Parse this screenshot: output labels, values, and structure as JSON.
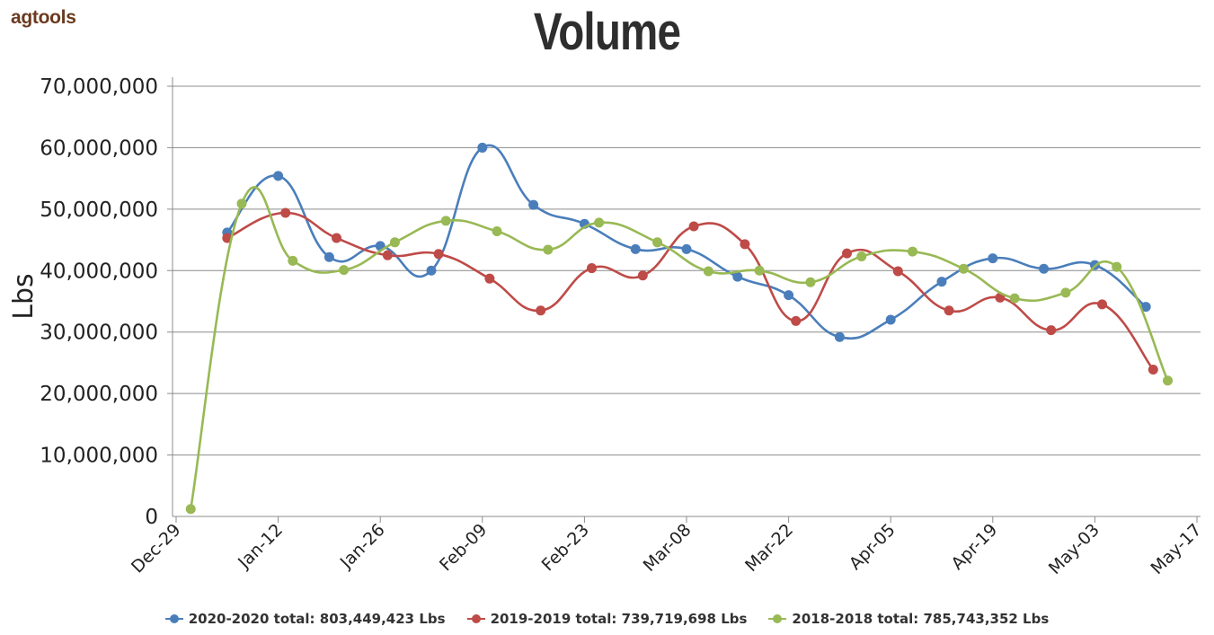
{
  "logo": {
    "text": "agtools"
  },
  "chart_data": {
    "type": "line",
    "title": "Volume",
    "xlabel": "",
    "ylabel": "Lbs",
    "ylim": [
      0,
      70000000
    ],
    "yticks": [
      "0",
      "10,000,000",
      "20,000,000",
      "30,000,000",
      "40,000,000",
      "50,000,000",
      "60,000,000",
      "70,000,000"
    ],
    "xlim": [
      "2019-12-29",
      "2020-05-17"
    ],
    "xticks": [
      "Dec-29",
      "Jan-12",
      "Jan-26",
      "Feb-09",
      "Feb-23",
      "Mar-08",
      "Mar-22",
      "Apr-05",
      "Apr-19",
      "May-03",
      "May-17"
    ],
    "grid": true,
    "legend_position": "bottom",
    "series": [
      {
        "name": "2020-2020 total: 803,449,423 Lbs",
        "color": "#4a7ebb",
        "points": [
          [
            "2020-01-05",
            46200000
          ],
          [
            "2020-01-12",
            55400000
          ],
          [
            "2020-01-19",
            42200000
          ],
          [
            "2020-01-26",
            44000000
          ],
          [
            "2020-02-02",
            40000000
          ],
          [
            "2020-02-09",
            60000000
          ],
          [
            "2020-02-16",
            50700000
          ],
          [
            "2020-02-23",
            47600000
          ],
          [
            "2020-03-01",
            43500000
          ],
          [
            "2020-03-08",
            43500000
          ],
          [
            "2020-03-15",
            39000000
          ],
          [
            "2020-03-22",
            36000000
          ],
          [
            "2020-03-29",
            29200000
          ],
          [
            "2020-04-05",
            32000000
          ],
          [
            "2020-04-12",
            38200000
          ],
          [
            "2020-04-19",
            42000000
          ],
          [
            "2020-04-26",
            40300000
          ],
          [
            "2020-05-03",
            40900000
          ],
          [
            "2020-05-10",
            34100000
          ]
        ]
      },
      {
        "name": "2019-2019 total: 739,719,698 Lbs",
        "color": "#be4b48",
        "points": [
          [
            "2020-01-05",
            45300000
          ],
          [
            "2020-01-13",
            49400000
          ],
          [
            "2020-01-20",
            45300000
          ],
          [
            "2020-01-27",
            42500000
          ],
          [
            "2020-02-03",
            42700000
          ],
          [
            "2020-02-10",
            38700000
          ],
          [
            "2020-02-17",
            33500000
          ],
          [
            "2020-02-24",
            40400000
          ],
          [
            "2020-03-02",
            39200000
          ],
          [
            "2020-03-09",
            47200000
          ],
          [
            "2020-03-16",
            44300000
          ],
          [
            "2020-03-23",
            31800000
          ],
          [
            "2020-03-30",
            42800000
          ],
          [
            "2020-04-06",
            39900000
          ],
          [
            "2020-04-13",
            33500000
          ],
          [
            "2020-04-20",
            35600000
          ],
          [
            "2020-04-27",
            30300000
          ],
          [
            "2020-05-04",
            34500000
          ],
          [
            "2020-05-11",
            23900000
          ]
        ]
      },
      {
        "name": "2018-2018 total: 785,743,352 Lbs",
        "color": "#98b954",
        "points": [
          [
            "2019-12-31",
            1200000
          ],
          [
            "2020-01-07",
            50900000
          ],
          [
            "2020-01-14",
            41600000
          ],
          [
            "2020-01-21",
            40100000
          ],
          [
            "2020-01-28",
            44600000
          ],
          [
            "2020-02-04",
            48100000
          ],
          [
            "2020-02-11",
            46400000
          ],
          [
            "2020-02-18",
            43400000
          ],
          [
            "2020-02-25",
            47800000
          ],
          [
            "2020-03-04",
            44600000
          ],
          [
            "2020-03-11",
            39900000
          ],
          [
            "2020-03-18",
            40000000
          ],
          [
            "2020-03-25",
            38100000
          ],
          [
            "2020-04-01",
            42300000
          ],
          [
            "2020-04-08",
            43100000
          ],
          [
            "2020-04-15",
            40300000
          ],
          [
            "2020-04-22",
            35500000
          ],
          [
            "2020-04-29",
            36400000
          ],
          [
            "2020-05-06",
            40600000
          ],
          [
            "2020-05-13",
            22100000
          ]
        ]
      }
    ]
  }
}
